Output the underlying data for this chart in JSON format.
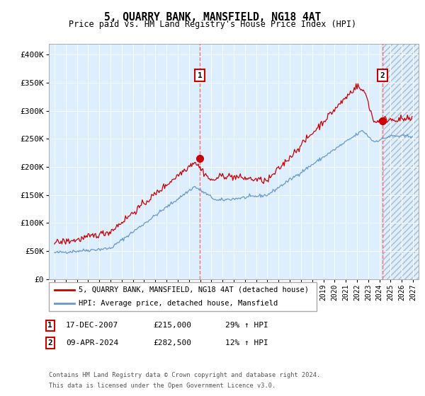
{
  "title": "5, QUARRY BANK, MANSFIELD, NG18 4AT",
  "subtitle": "Price paid vs. HM Land Registry's House Price Index (HPI)",
  "legend_line1": "5, QUARRY BANK, MANSFIELD, NG18 4AT (detached house)",
  "legend_line2": "HPI: Average price, detached house, Mansfield",
  "table_row1": [
    "1",
    "17-DEC-2007",
    "£215,000",
    "29% ↑ HPI"
  ],
  "table_row2": [
    "2",
    "09-APR-2024",
    "£282,500",
    "12% ↑ HPI"
  ],
  "footnote1": "Contains HM Land Registry data © Crown copyright and database right 2024.",
  "footnote2": "This data is licensed under the Open Government Licence v3.0.",
  "red_line_color": "#cc0000",
  "blue_line_color": "#6699cc",
  "bg_color": "#ddeeff",
  "grid_color": "#ffffff",
  "marker_color": "#cc0000",
  "dashed_line_color": "#ff6666",
  "ylim": [
    0,
    420000
  ],
  "yticks": [
    0,
    50000,
    100000,
    150000,
    200000,
    250000,
    300000,
    350000,
    400000
  ],
  "ytick_labels": [
    "£0",
    "£50K",
    "£100K",
    "£150K",
    "£200K",
    "£250K",
    "£300K",
    "£350K",
    "£400K"
  ],
  "sale1_x": 2007.96,
  "sale1_y": 215000,
  "sale2_x": 2024.27,
  "sale2_y": 282500,
  "xmin": 1994.5,
  "xmax": 2027.5,
  "xticks": [
    1995,
    1996,
    1997,
    1998,
    1999,
    2000,
    2001,
    2002,
    2003,
    2004,
    2005,
    2006,
    2007,
    2008,
    2009,
    2010,
    2011,
    2012,
    2013,
    2014,
    2015,
    2016,
    2017,
    2018,
    2019,
    2020,
    2021,
    2022,
    2023,
    2024,
    2025,
    2026,
    2027
  ]
}
